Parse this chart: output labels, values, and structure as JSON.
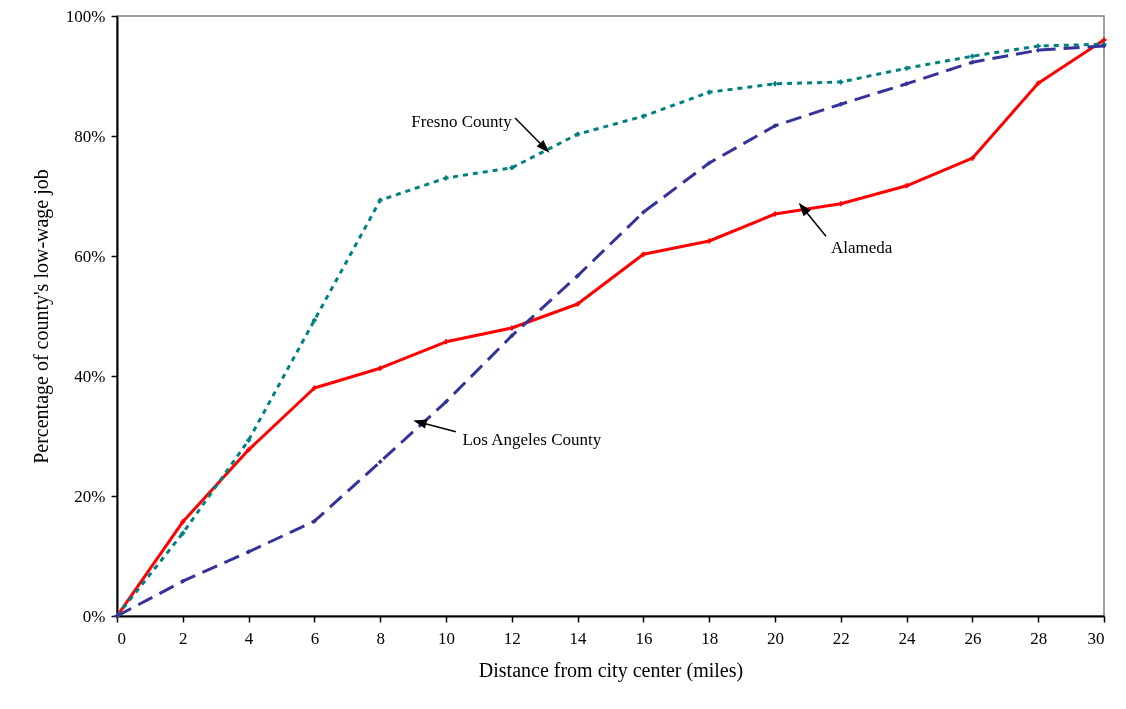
{
  "chart_data": {
    "type": "line",
    "xlabel": "Distance from city center (miles)",
    "ylabel": "Percentage of county's low-wage job",
    "x": [
      0,
      2,
      4,
      6,
      8,
      10,
      12,
      14,
      16,
      18,
      20,
      22,
      24,
      26,
      28,
      30
    ],
    "series": [
      {
        "name": "Alameda",
        "color": "#ff0000",
        "line_style": "solid",
        "marker": "cross",
        "values": [
          0,
          15.7,
          27.7,
          38,
          41.3,
          45.7,
          48,
          52,
          60.3,
          62.5,
          67,
          68.7,
          71.7,
          76.3,
          88.8,
          96
        ]
      },
      {
        "name": "Fresno County",
        "color": "#008080",
        "line_style": "dotted",
        "marker": "cross",
        "values": [
          0,
          13.8,
          29.3,
          49.3,
          69.3,
          73,
          74.7,
          80.3,
          83.3,
          87.3,
          88.7,
          89,
          91.3,
          93.3,
          95,
          95.3
        ]
      },
      {
        "name": "Los Angeles County",
        "color": "#333399",
        "line_style": "dashed",
        "marker": "diamond",
        "values": [
          0,
          5.8,
          10.7,
          15.8,
          25.7,
          35.7,
          46.7,
          56.7,
          67.3,
          75.5,
          81.7,
          85.3,
          88.7,
          92.3,
          94.3,
          95
        ]
      }
    ],
    "xlim": [
      0,
      30
    ],
    "xticks": [
      0,
      2,
      4,
      6,
      8,
      10,
      12,
      14,
      16,
      18,
      20,
      22,
      24,
      26,
      28,
      30
    ],
    "ylim": [
      0,
      100
    ],
    "yticks": [
      {
        "value": 0,
        "label": "0%"
      },
      {
        "value": 20,
        "label": "20%"
      },
      {
        "value": 40,
        "label": "40%"
      },
      {
        "value": 60,
        "label": "60%"
      },
      {
        "value": 80,
        "label": "80%"
      },
      {
        "value": 100,
        "label": "100%"
      }
    ],
    "grid": false
  }
}
